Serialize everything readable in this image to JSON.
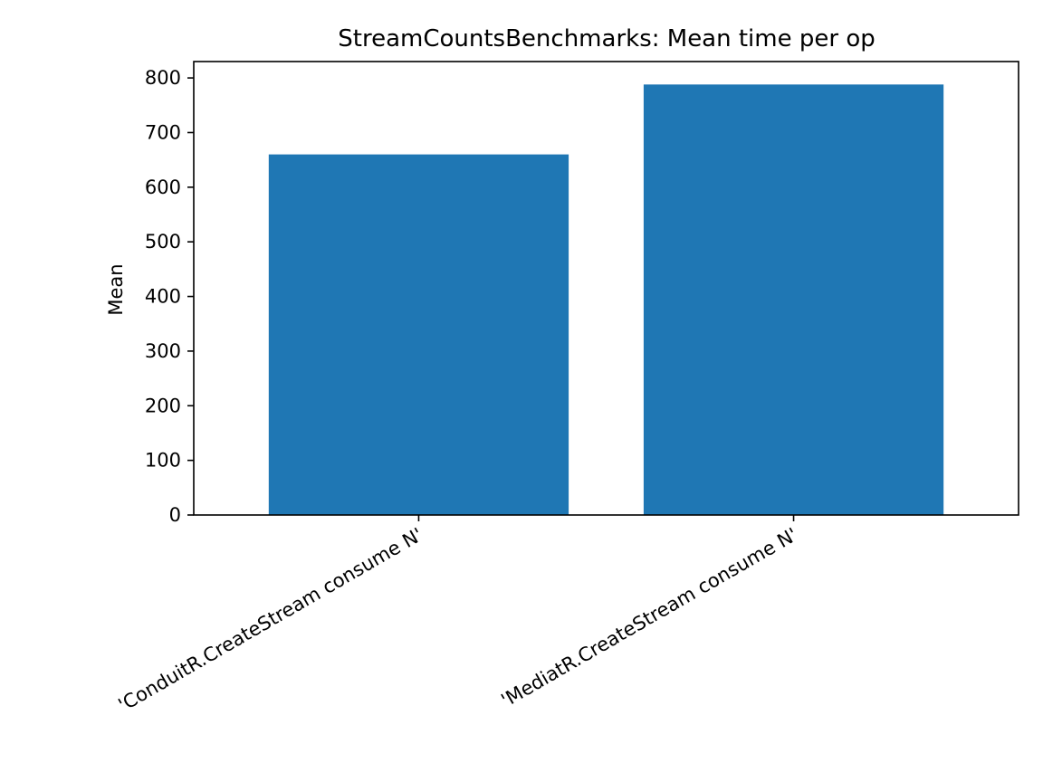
{
  "chart_data": {
    "type": "bar",
    "title": "StreamCountsBenchmarks: Mean time per op",
    "xlabel": "",
    "ylabel": "Mean",
    "categories": [
      "'ConduitR.CreateStream consume N'",
      "'MediatR.CreateStream consume N'"
    ],
    "values": [
      660,
      788
    ],
    "ylim": [
      0,
      830
    ],
    "yticks": [
      0,
      100,
      200,
      300,
      400,
      500,
      600,
      700,
      800
    ],
    "bar_color": "#1f77b4",
    "grid": false,
    "legend": "none"
  }
}
